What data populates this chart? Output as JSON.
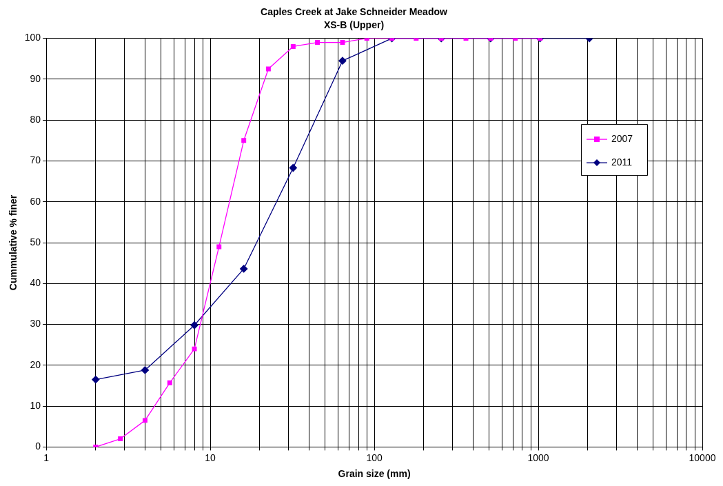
{
  "chart_data": {
    "type": "line",
    "title": "Caples Creek at Jake Schneider Meadow",
    "subtitle": "XS-B (Upper)",
    "xlabel": "Grain size (mm)",
    "ylabel": "Cummulative % finer",
    "log": "x",
    "grid": true,
    "legend": "right",
    "line_style": "solid",
    "xlim": [
      1,
      10000
    ],
    "ylim": [
      0,
      100
    ],
    "xticks": [
      1,
      {
        "value": 2,
        "label": null
      },
      {
        "value": 3,
        "label": null
      },
      {
        "value": 4,
        "label": null
      },
      {
        "value": 5,
        "label": null
      },
      {
        "value": 6,
        "label": null
      },
      {
        "value": 7,
        "label": null
      },
      {
        "value": 8,
        "label": null
      },
      {
        "value": 9,
        "label": null
      },
      10,
      {
        "value": 20,
        "label": null
      },
      {
        "value": 30,
        "label": null
      },
      {
        "value": 40,
        "label": null
      },
      {
        "value": 50,
        "label": null
      },
      {
        "value": 60,
        "label": null
      },
      {
        "value": 70,
        "label": null
      },
      {
        "value": 80,
        "label": null
      },
      {
        "value": 90,
        "label": null
      },
      100,
      {
        "value": 200,
        "label": null
      },
      {
        "value": 300,
        "label": null
      },
      {
        "value": 400,
        "label": null
      },
      {
        "value": 500,
        "label": null
      },
      {
        "value": 600,
        "label": null
      },
      {
        "value": 700,
        "label": null
      },
      {
        "value": 800,
        "label": null
      },
      {
        "value": 900,
        "label": null
      },
      1000,
      {
        "value": 2000,
        "label": null
      },
      {
        "value": 3000,
        "label": null
      },
      {
        "value": 4000,
        "label": null
      },
      {
        "value": 5000,
        "label": null
      },
      {
        "value": 6000,
        "label": null
      },
      {
        "value": 7000,
        "label": null
      },
      {
        "value": 8000,
        "label": null
      },
      {
        "value": 9000,
        "label": null
      },
      10000
    ],
    "yticks": [
      0,
      10,
      20,
      30,
      40,
      50,
      60,
      70,
      80,
      90,
      100
    ],
    "series": [
      {
        "name": "2007",
        "color": "#ff00ff",
        "marker": "square",
        "x": [
          2,
          2.83,
          4,
          5.66,
          8,
          11.3,
          16,
          22.6,
          32,
          45,
          64,
          90,
          128,
          180,
          256,
          362,
          512,
          724,
          1024
        ],
        "values": [
          0,
          2,
          6.5,
          15.7,
          24,
          49,
          75,
          92.5,
          98,
          99,
          99,
          100,
          100,
          100,
          100,
          100,
          100,
          100,
          100
        ]
      },
      {
        "name": "2011",
        "color": "#000080",
        "marker": "diamond",
        "x": [
          2,
          4,
          8,
          16,
          32,
          64,
          128,
          256,
          512,
          1024,
          2048
        ],
        "values": [
          16.5,
          18.8,
          29.8,
          43.6,
          68.3,
          94.5,
          100,
          100,
          100,
          100,
          100
        ]
      }
    ]
  }
}
